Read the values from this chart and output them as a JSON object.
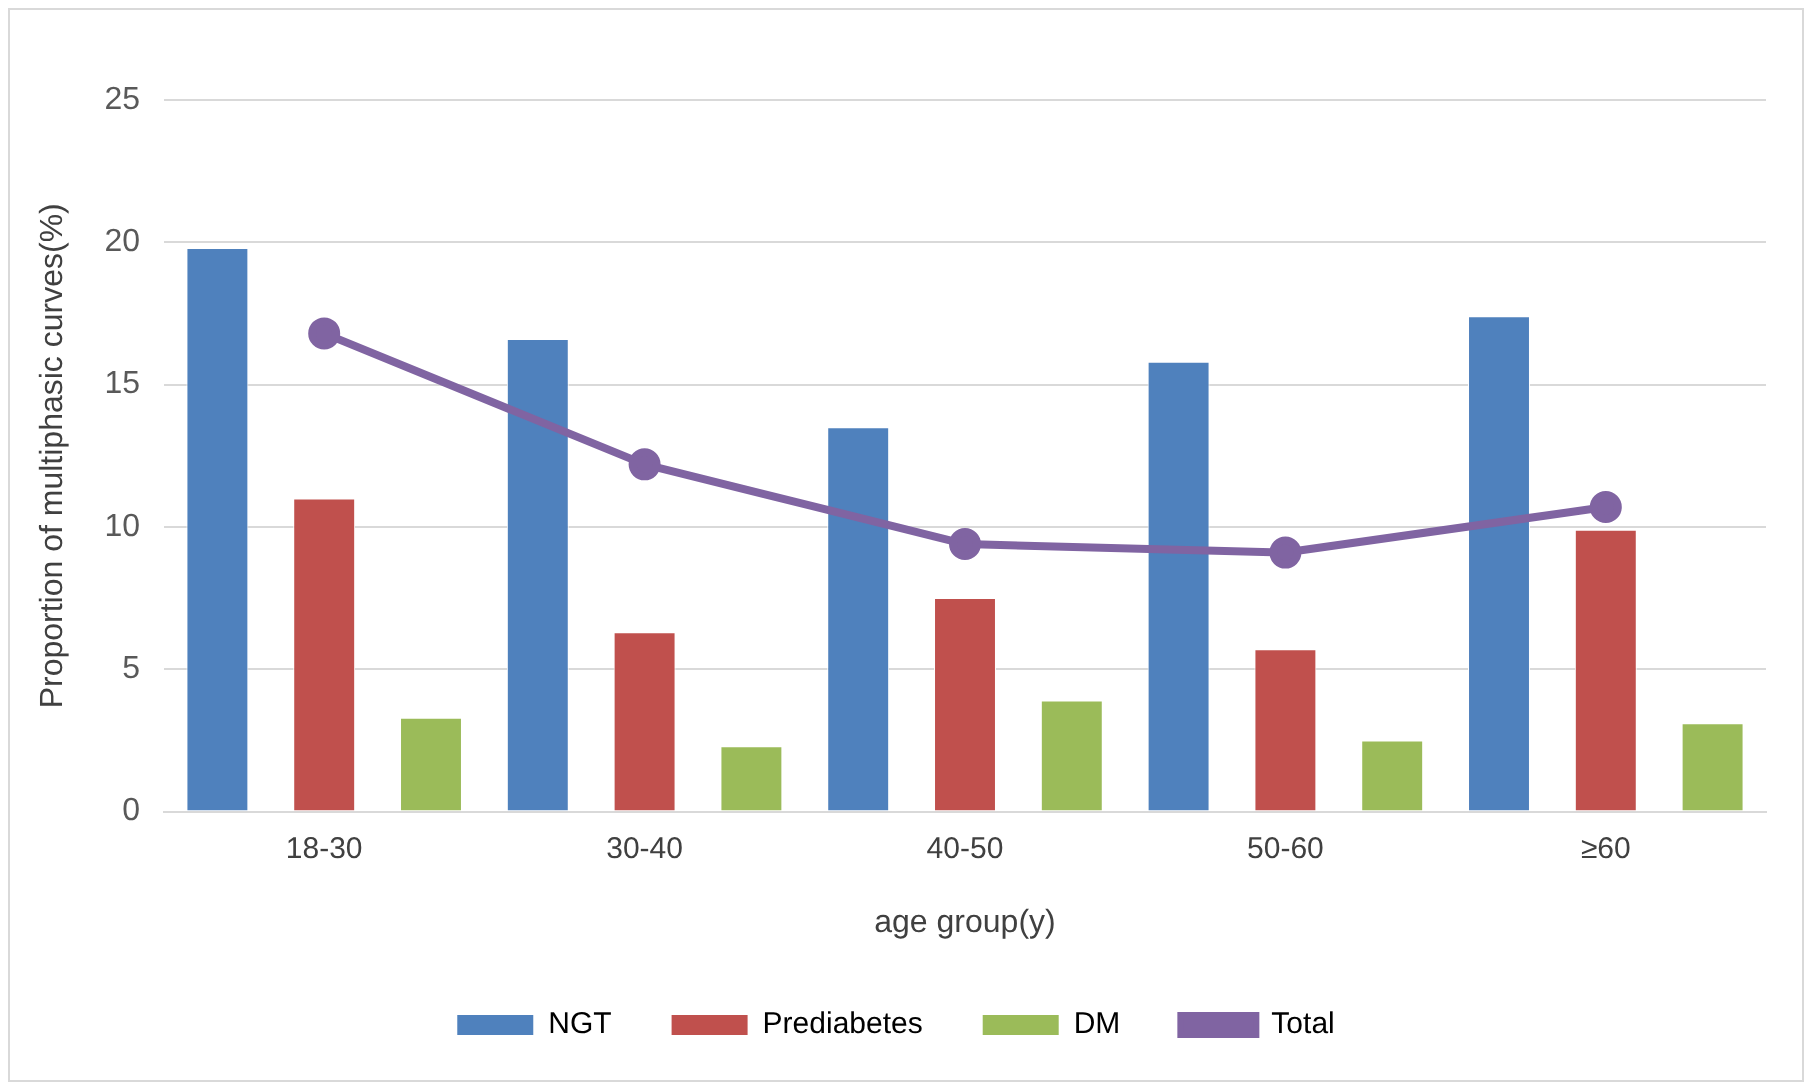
{
  "chart_data": {
    "type": "bar",
    "xlabel": "age group(y)",
    "ylabel": "Proportion of multiphasic curves(%)",
    "categories": [
      "18-30",
      "30-40",
      "40-50",
      "50-60",
      "≥60"
    ],
    "series": [
      {
        "name": "NGT",
        "color": "#4f81bd",
        "values": [
          19.8,
          16.6,
          13.5,
          15.8,
          17.4
        ]
      },
      {
        "name": "Prediabetes",
        "color": "#c0504d",
        "values": [
          11.0,
          6.3,
          7.5,
          5.7,
          9.9
        ]
      },
      {
        "name": "DM",
        "color": "#9bbb59",
        "values": [
          3.3,
          2.3,
          3.9,
          2.5,
          3.1
        ]
      },
      {
        "name": "Total",
        "type": "line",
        "color": "#8064a2",
        "values": [
          16.8,
          12.2,
          9.4,
          9.1,
          10.7
        ]
      }
    ],
    "ylim": [
      0,
      25
    ],
    "yticks": [
      0,
      5,
      10,
      15,
      20,
      25
    ],
    "grid": "y",
    "legend": "bottom",
    "marker": "circle",
    "line_style": "solid"
  }
}
